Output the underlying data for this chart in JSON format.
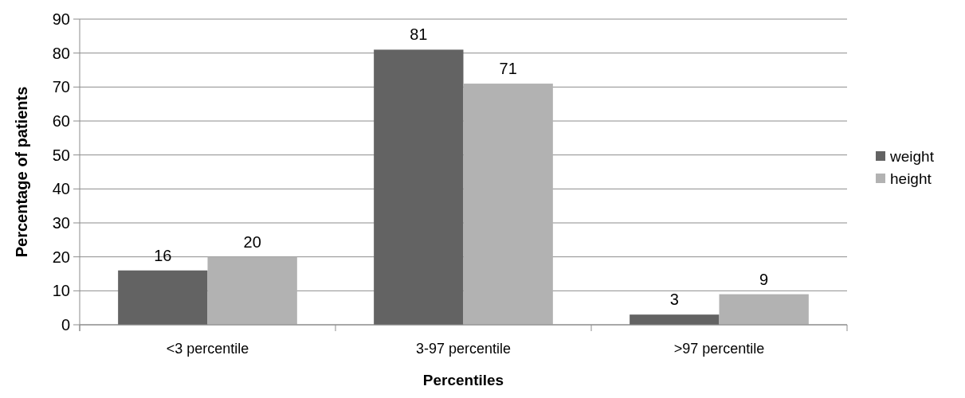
{
  "chart_data": {
    "type": "bar",
    "xlabel": "Percentiles",
    "ylabel": "Percentage of patients",
    "categories": [
      "<3 percentile",
      "3-97 percentile",
      ">97 percentile"
    ],
    "series": [
      {
        "name": "weight",
        "color": "#636363",
        "values": [
          16,
          81,
          3
        ]
      },
      {
        "name": "height",
        "color": "#b2b2b2",
        "values": [
          20,
          71,
          9
        ]
      }
    ],
    "ylim": [
      0,
      90
    ],
    "yticks": [
      0,
      10,
      20,
      30,
      40,
      50,
      60,
      70,
      80,
      90
    ],
    "grid": "y",
    "legend": "right",
    "data_labels": true
  }
}
